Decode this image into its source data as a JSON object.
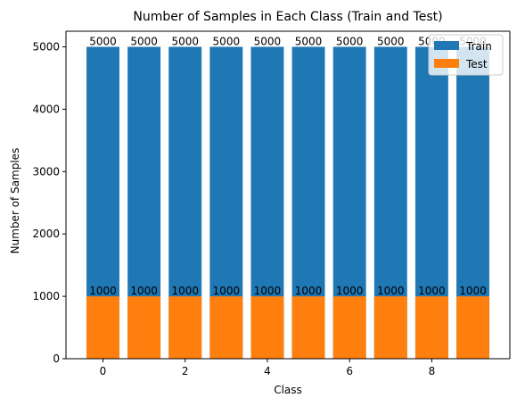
{
  "chart_data": {
    "type": "bar",
    "title": "Number of Samples in Each Class (Train and Test)",
    "xlabel": "Class",
    "ylabel": "Number of Samples",
    "categories": [
      0,
      1,
      2,
      3,
      4,
      5,
      6,
      7,
      8,
      9
    ],
    "series": [
      {
        "name": "Train",
        "color": "#1f77b4",
        "values": [
          5000,
          5000,
          5000,
          5000,
          5000,
          5000,
          5000,
          5000,
          5000,
          5000
        ]
      },
      {
        "name": "Test",
        "color": "#ff7f0e",
        "values": [
          1000,
          1000,
          1000,
          1000,
          1000,
          1000,
          1000,
          1000,
          1000,
          1000
        ]
      }
    ],
    "x_ticks": [
      0,
      2,
      4,
      6,
      8
    ],
    "y_ticks": [
      0,
      1000,
      2000,
      3000,
      4000,
      5000
    ],
    "xlim": [
      -0.9,
      9.9
    ],
    "ylim": [
      0,
      5250
    ],
    "bar_width": 0.8,
    "grid": false,
    "legend_position": "top-right",
    "overlay": true
  }
}
